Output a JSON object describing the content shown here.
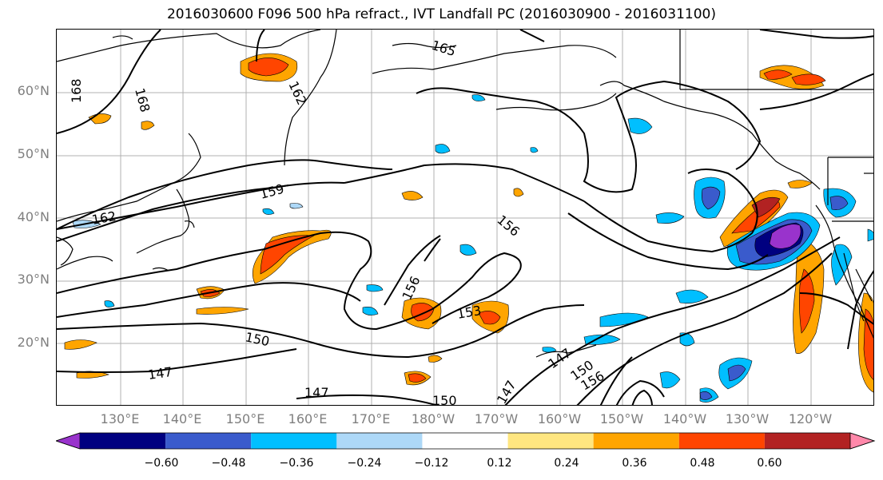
{
  "title": "2016030600 F096 500 hPa refract., IVT Landfall PC (2016030900 - 2016031100)",
  "lat_labels": [
    "60°N",
    "50°N",
    "40°N",
    "30°N",
    "20°N"
  ],
  "lon_labels": [
    "130°E",
    "140°E",
    "150°E",
    "160°E",
    "170°E",
    "180°W",
    "170°W",
    "160°W",
    "150°W",
    "140°W",
    "130°W",
    "120°W"
  ],
  "contour_labels": [
    "165",
    "168",
    "168",
    "162",
    "159",
    "162",
    "156",
    "156",
    "153",
    "150",
    "147",
    "147",
    "150",
    "147",
    "147",
    "150",
    "156"
  ],
  "colorbar": {
    "tick_labels": [
      "−0.60",
      "−0.48",
      "−0.36",
      "−0.24",
      "−0.12",
      "0.12",
      "0.24",
      "0.36",
      "0.48",
      "0.60"
    ],
    "colors": [
      "#9933cc",
      "#000080",
      "#3a5bcc",
      "#00bfff",
      "#add8f7",
      "#ffffff",
      "#ffe680",
      "#ffa500",
      "#ff4500",
      "#b22222",
      "#ff88aa"
    ]
  }
}
